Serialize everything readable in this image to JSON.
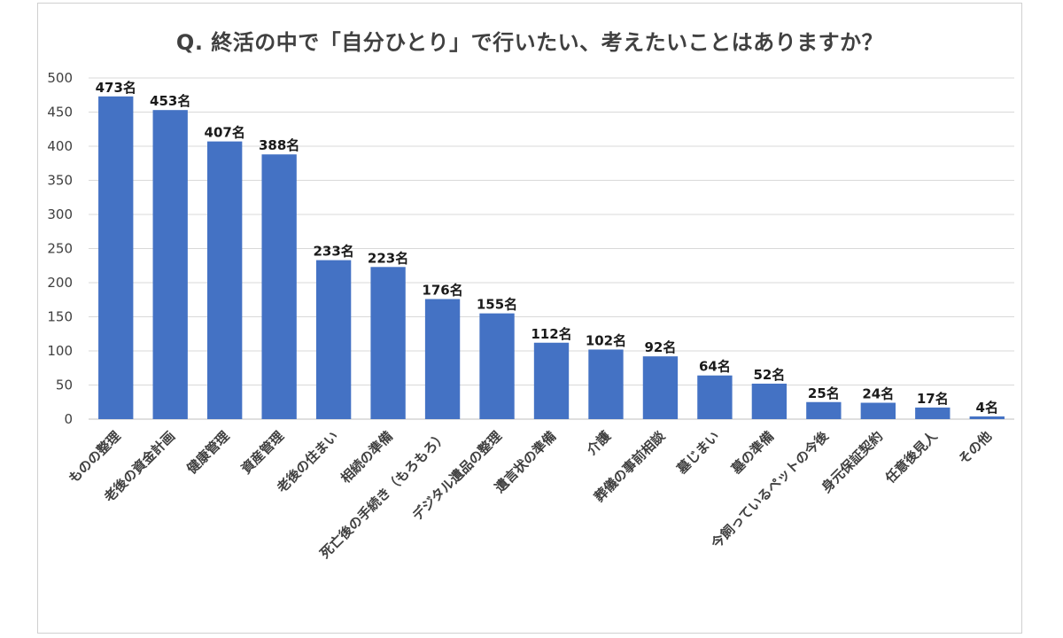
{
  "chart_data": {
    "type": "bar",
    "title": "Q. 終活の中で「自分ひとり」で行いたい、考えたいことはありますか？",
    "xlabel": "",
    "ylabel": "",
    "ylim": [
      0,
      500
    ],
    "yticks": [
      0,
      50,
      100,
      150,
      200,
      250,
      300,
      350,
      400,
      450,
      500
    ],
    "grid": true,
    "legend": "none",
    "bar_color": "#4472C4",
    "value_suffix": "名",
    "categories": [
      "ものの整理",
      "老後の資金計画",
      "健康管理",
      "資産管理",
      "老後の住まい",
      "相続の準備",
      "死亡後の手続き（もろもろ）",
      "デジタル遺品の整理",
      "遺言状の準備",
      "介護",
      "葬儀の事前相談",
      "墓じまい",
      "墓の準備",
      "今飼っているペットの今後",
      "身元保証契約",
      "任意後見人",
      "その他"
    ],
    "values": [
      473,
      453,
      407,
      388,
      233,
      223,
      176,
      155,
      112,
      102,
      92,
      64,
      52,
      25,
      24,
      17,
      4
    ],
    "data_labels": [
      "473名",
      "453名",
      "407名",
      "388名",
      "233名",
      "223名",
      "176名",
      "155名",
      "112名",
      "102名",
      "92名",
      "64名",
      "52名",
      "25名",
      "24名",
      "17名",
      "4名"
    ]
  }
}
